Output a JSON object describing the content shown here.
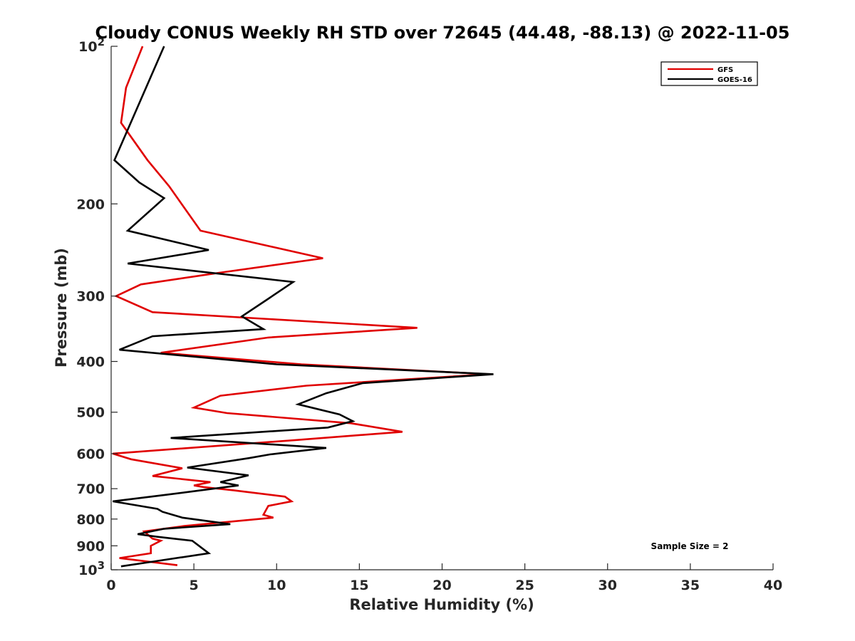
{
  "chart_data": {
    "type": "line",
    "title": "Cloudy CONUS Weekly RH STD over 72645 (44.48, -88.13) @ 2022-11-05",
    "xlabel": "Relative Humidity (%)",
    "ylabel": "Pressure (mb)",
    "xlim": [
      0,
      40
    ],
    "ylim": [
      100,
      1000
    ],
    "y_scale": "log",
    "y_reversed": true,
    "grid": false,
    "legend_position": "top-right",
    "x_ticks": [
      "0",
      "5",
      "10",
      "15",
      "20",
      "25",
      "30",
      "35",
      "40"
    ],
    "y_ticks": [
      {
        "value": 100,
        "label": "10",
        "sup": "2"
      },
      {
        "value": 200,
        "label": "200"
      },
      {
        "value": 300,
        "label": "300"
      },
      {
        "value": 400,
        "label": "400"
      },
      {
        "value": 500,
        "label": "500"
      },
      {
        "value": 600,
        "label": "600"
      },
      {
        "value": 700,
        "label": "700"
      },
      {
        "value": 800,
        "label": "800"
      },
      {
        "value": 900,
        "label": "900"
      },
      {
        "value": 1000,
        "label": "10",
        "sup": "3"
      }
    ],
    "annotation": "Sample Size = 2",
    "series": [
      {
        "name": "GFS",
        "color": "#e00000",
        "points": [
          [
            1.9,
            100
          ],
          [
            0.9,
            120
          ],
          [
            0.6,
            140
          ],
          [
            2.2,
            165
          ],
          [
            3.5,
            185
          ],
          [
            5.4,
            225
          ],
          [
            12.8,
            254
          ],
          [
            6.8,
            270
          ],
          [
            1.8,
            285
          ],
          [
            0.3,
            300
          ],
          [
            2.5,
            322
          ],
          [
            18.5,
            345
          ],
          [
            9.5,
            360
          ],
          [
            3.0,
            385
          ],
          [
            11.5,
            405
          ],
          [
            22.8,
            423
          ],
          [
            11.8,
            445
          ],
          [
            6.6,
            465
          ],
          [
            5.0,
            490
          ],
          [
            7.0,
            502
          ],
          [
            14.5,
            525
          ],
          [
            17.6,
            545
          ],
          [
            11.2,
            565
          ],
          [
            0.1,
            600
          ],
          [
            1.2,
            615
          ],
          [
            4.3,
            640
          ],
          [
            2.5,
            662
          ],
          [
            6.0,
            680
          ],
          [
            5.0,
            690
          ],
          [
            5.6,
            695
          ],
          [
            7.4,
            705
          ],
          [
            10.5,
            725
          ],
          [
            10.9,
            740
          ],
          [
            9.5,
            755
          ],
          [
            9.2,
            785
          ],
          [
            9.8,
            795
          ],
          [
            4.4,
            825
          ],
          [
            2.0,
            845
          ],
          [
            2.5,
            872
          ],
          [
            3.0,
            880
          ],
          [
            2.4,
            900
          ],
          [
            2.4,
            930
          ],
          [
            0.5,
            950
          ],
          [
            4.0,
            980
          ]
        ]
      },
      {
        "name": "GOES-16",
        "color": "#000000",
        "points": [
          [
            3.2,
            100
          ],
          [
            0.2,
            165
          ],
          [
            1.7,
            182
          ],
          [
            3.2,
            195
          ],
          [
            1.0,
            225
          ],
          [
            5.9,
            245
          ],
          [
            1.0,
            260
          ],
          [
            11.0,
            282
          ],
          [
            9.4,
            305
          ],
          [
            7.9,
            328
          ],
          [
            9.2,
            347
          ],
          [
            2.5,
            358
          ],
          [
            0.5,
            380
          ],
          [
            10.0,
            405
          ],
          [
            23.1,
            423
          ],
          [
            15.2,
            440
          ],
          [
            13.0,
            460
          ],
          [
            11.3,
            483
          ],
          [
            13.8,
            505
          ],
          [
            14.6,
            520
          ],
          [
            13.1,
            535
          ],
          [
            3.6,
            560
          ],
          [
            13.0,
            585
          ],
          [
            9.6,
            602
          ],
          [
            8.3,
            612
          ],
          [
            4.6,
            638
          ],
          [
            8.3,
            660
          ],
          [
            6.6,
            680
          ],
          [
            7.7,
            690
          ],
          [
            3.2,
            720
          ],
          [
            0.1,
            740
          ],
          [
            2.8,
            765
          ],
          [
            3.1,
            775
          ],
          [
            4.3,
            795
          ],
          [
            7.2,
            818
          ],
          [
            3.2,
            835
          ],
          [
            1.6,
            855
          ],
          [
            2.8,
            865
          ],
          [
            4.9,
            880
          ],
          [
            5.9,
            930
          ],
          [
            2.5,
            965
          ],
          [
            0.6,
            985
          ]
        ]
      }
    ]
  }
}
